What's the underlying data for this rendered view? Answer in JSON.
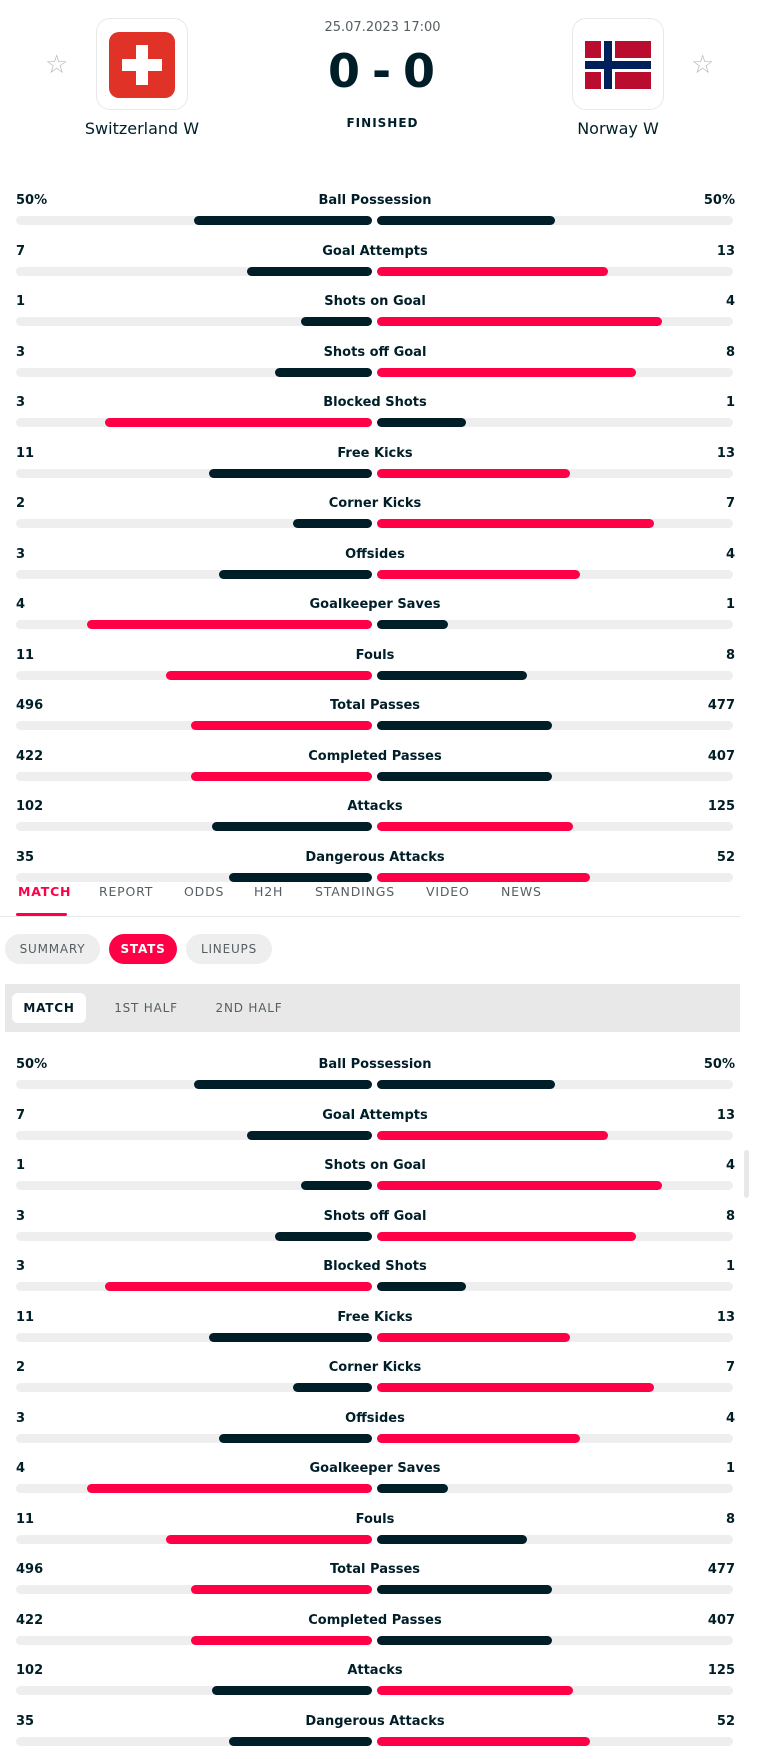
{
  "match": {
    "datetime": "25.07.2023 17:00",
    "home_score": "0",
    "away_score": "0",
    "separator": "-",
    "status": "FINISHED",
    "home_team": "Switzerland W",
    "away_team": "Norway W",
    "star": "☆"
  },
  "colors": {
    "accent": "#ff0046",
    "dark": "#001e28",
    "track": "#eeeeee"
  },
  "stats": [
    {
      "category": "Ball Possession",
      "home": "50%",
      "away": "50%",
      "home_val": 50,
      "away_val": 50
    },
    {
      "category": "Goal Attempts",
      "home": "7",
      "away": "13",
      "home_val": 7,
      "away_val": 13
    },
    {
      "category": "Shots on Goal",
      "home": "1",
      "away": "4",
      "home_val": 1,
      "away_val": 4
    },
    {
      "category": "Shots off Goal",
      "home": "3",
      "away": "8",
      "home_val": 3,
      "away_val": 8
    },
    {
      "category": "Blocked Shots",
      "home": "3",
      "away": "1",
      "home_val": 3,
      "away_val": 1
    },
    {
      "category": "Free Kicks",
      "home": "11",
      "away": "13",
      "home_val": 11,
      "away_val": 13
    },
    {
      "category": "Corner Kicks",
      "home": "2",
      "away": "7",
      "home_val": 2,
      "away_val": 7
    },
    {
      "category": "Offsides",
      "home": "3",
      "away": "4",
      "home_val": 3,
      "away_val": 4
    },
    {
      "category": "Goalkeeper Saves",
      "home": "4",
      "away": "1",
      "home_val": 4,
      "away_val": 1
    },
    {
      "category": "Fouls",
      "home": "11",
      "away": "8",
      "home_val": 11,
      "away_val": 8
    },
    {
      "category": "Total Passes",
      "home": "496",
      "away": "477",
      "home_val": 496,
      "away_val": 477
    },
    {
      "category": "Completed Passes",
      "home": "422",
      "away": "407",
      "home_val": 422,
      "away_val": 407
    },
    {
      "category": "Attacks",
      "home": "102",
      "away": "125",
      "home_val": 102,
      "away_val": 125
    },
    {
      "category": "Dangerous Attacks",
      "home": "35",
      "away": "52",
      "home_val": 35,
      "away_val": 52
    }
  ],
  "tabs": [
    "MATCH",
    "REPORT",
    "ODDS",
    "H2H",
    "STANDINGS",
    "VIDEO",
    "NEWS"
  ],
  "subtabs": [
    "SUMMARY",
    "STATS",
    "LINEUPS"
  ],
  "periods": [
    "MATCH",
    "1ST HALF",
    "2ND HALF"
  ]
}
